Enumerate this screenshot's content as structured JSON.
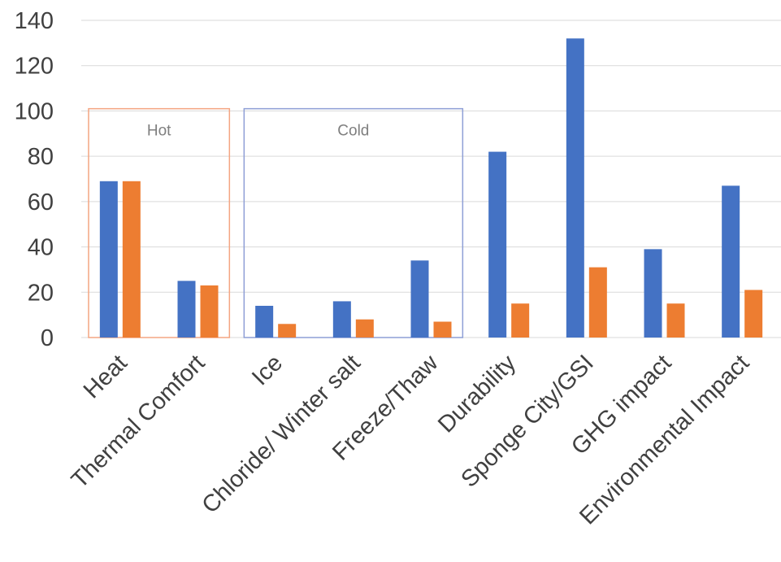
{
  "chart_data": {
    "type": "bar",
    "categories": [
      "Heat",
      "Thermal Comfort",
      "Ice",
      "Chloride/ Winter salt",
      "Freeze/Thaw",
      "Durability",
      "Sponge City/GSI",
      "GHG impact",
      "Environmental Impact"
    ],
    "series": [
      {
        "values": [
          69,
          25,
          14,
          16,
          34,
          82,
          132,
          39,
          67
        ],
        "color": "#4472c4"
      },
      {
        "values": [
          69,
          23,
          6,
          8,
          7,
          15,
          31,
          15,
          21
        ],
        "color": "#ed7d31"
      }
    ],
    "ylim": [
      0,
      140
    ],
    "yticks": [
      0,
      20,
      40,
      60,
      80,
      100,
      120,
      140
    ],
    "grid": true,
    "legend": "none",
    "annotations": [
      {
        "label": "Hot",
        "from_category": 0,
        "to_category": 1,
        "top_value": 101,
        "color": "#f4a582"
      },
      {
        "label": "Cold",
        "from_category": 2,
        "to_category": 4,
        "top_value": 101,
        "color": "#8e9fd6"
      }
    ]
  }
}
